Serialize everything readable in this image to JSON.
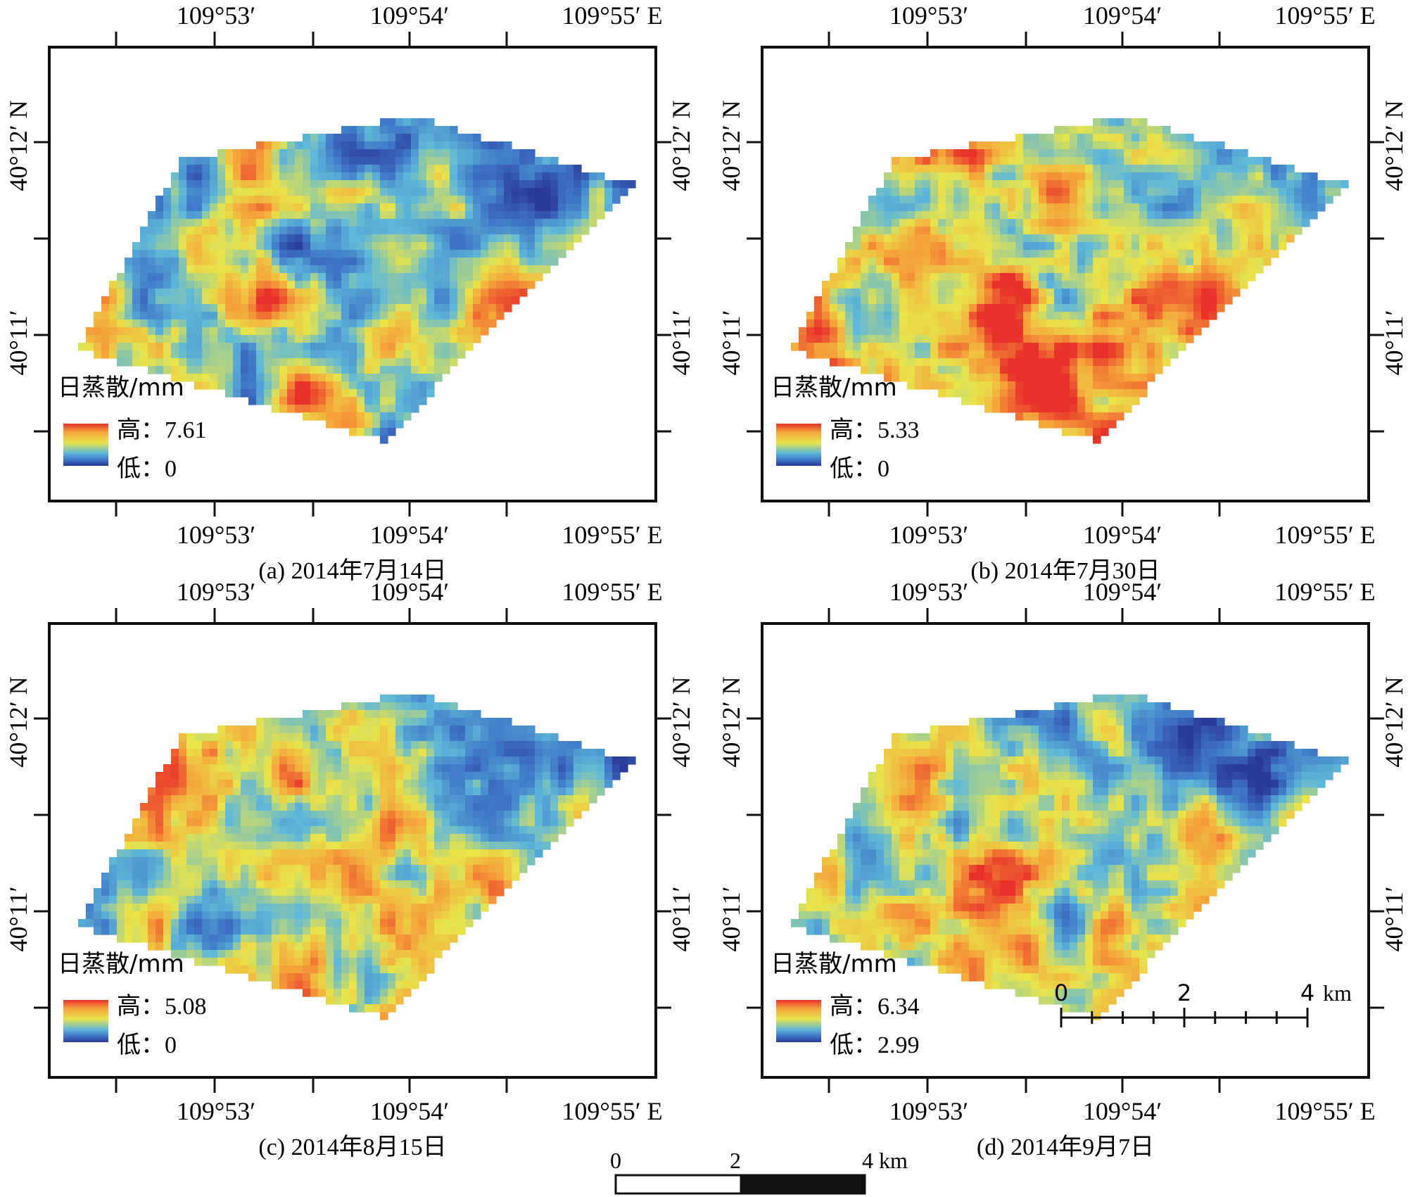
{
  "figure": {
    "lon_labels": [
      "109°53′",
      "109°54′",
      "109°55′  E"
    ],
    "lat_labels": [
      "40°12′  N",
      "40°11′"
    ],
    "panels": [
      {
        "id": "a",
        "caption": "(a) 2014年7月14日",
        "legend_title": "日蒸散/mm",
        "high_label": "高：",
        "high_value": "7.61",
        "low_label": "低：",
        "low_value": "0",
        "bias": 0.0,
        "blue_ne": 0.75
      },
      {
        "id": "b",
        "caption": "(b) 2014年7月30日",
        "legend_title": "日蒸散/mm",
        "high_label": "高：",
        "high_value": "5.33",
        "low_label": "低：",
        "low_value": "0",
        "bias": 0.18,
        "blue_ne": 0.55
      },
      {
        "id": "c",
        "caption": "(c) 2014年8月15日",
        "legend_title": "日蒸散/mm",
        "high_label": "高：",
        "high_value": "5.08",
        "low_label": "低：",
        "low_value": "0",
        "bias": 0.05,
        "blue_ne": 0.6
      },
      {
        "id": "d",
        "caption": "(d) 2014年9月7日",
        "legend_title": "日蒸散/mm",
        "high_label": "高：",
        "high_value": "6.34",
        "low_label": "低：",
        "low_value": "2.99",
        "bias": 0.02,
        "blue_ne": 0.6
      }
    ],
    "inset_scalebar": {
      "labels": [
        "0",
        "2",
        "4"
      ],
      "unit": "km"
    },
    "bottom_scalebar": {
      "labels": [
        "0",
        "2",
        "4 km"
      ]
    },
    "colors": {
      "ramp": [
        "#2b3a9a",
        "#3f77c8",
        "#5fb8d8",
        "#e8e44a",
        "#f5a23a",
        "#e8302a"
      ]
    }
  }
}
